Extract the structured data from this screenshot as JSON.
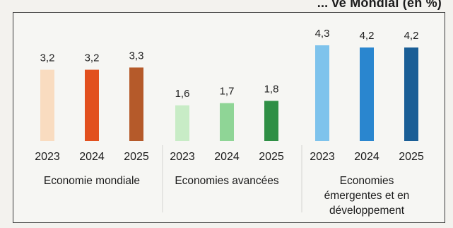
{
  "title": "... ve Mondial (en %)",
  "chart_data": {
    "type": "bar",
    "title": "... ve Mondial (en %)",
    "xlabel": "",
    "ylabel": "",
    "ylim": [
      0,
      4.5
    ],
    "grid": false,
    "legend": "none",
    "groups": [
      {
        "label_lines": [
          "Economie mondiale"
        ],
        "categories": [
          "2023",
          "2024",
          "2025"
        ],
        "values": [
          3.2,
          3.2,
          3.3
        ],
        "value_labels": [
          "3,2",
          "3,2",
          "3,3"
        ],
        "colors": [
          "#f9dcc0",
          "#e2501e",
          "#b55a2a"
        ]
      },
      {
        "label_lines": [
          "Economies avancées"
        ],
        "categories": [
          "2023",
          "2024",
          "2025"
        ],
        "values": [
          1.6,
          1.7,
          1.8
        ],
        "value_labels": [
          "1,6",
          "1,7",
          "1,8"
        ],
        "colors": [
          "#c8ecc6",
          "#8fd596",
          "#2f8f45"
        ]
      },
      {
        "label_lines": [
          "Economies",
          "émergentes et en",
          "développement"
        ],
        "categories": [
          "2023",
          "2024",
          "2025"
        ],
        "values": [
          4.3,
          4.2,
          4.2
        ],
        "value_labels": [
          "4,3",
          "4,2",
          "4,2"
        ],
        "colors": [
          "#7ec3ec",
          "#2a86cf",
          "#1a5e96"
        ]
      }
    ]
  }
}
